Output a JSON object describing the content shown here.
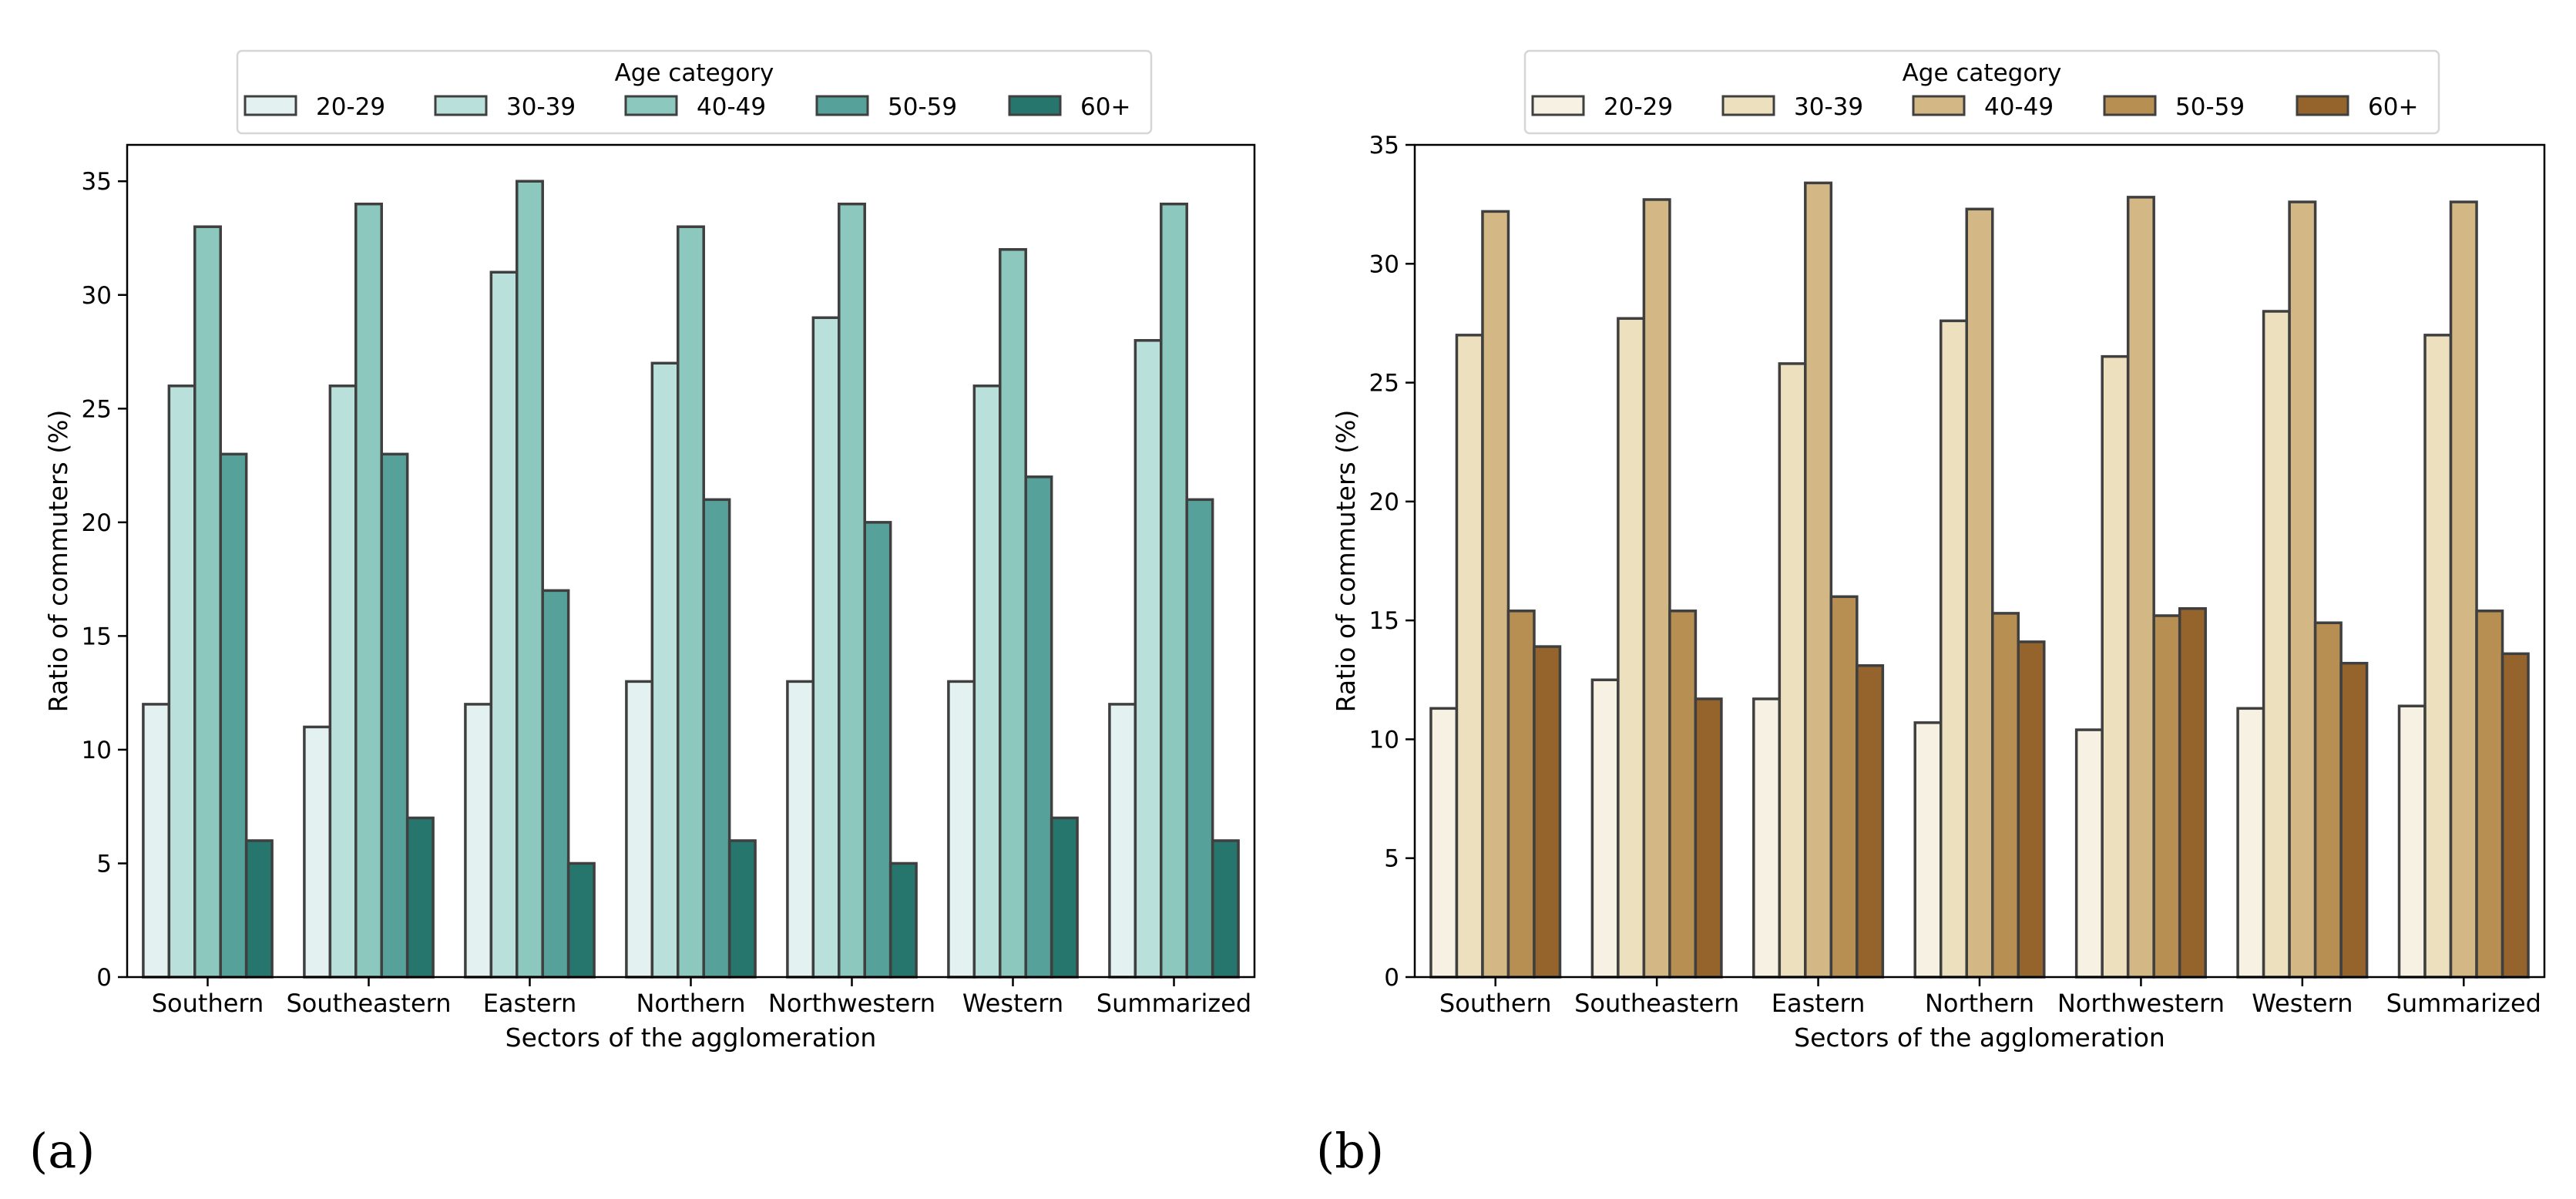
{
  "chart_data": [
    {
      "type": "bar",
      "panel_label": "(a)",
      "title": "",
      "xlabel": "Sectors of the agglomeration",
      "ylabel": "Ratio of commuters (%)",
      "ylim": [
        0,
        36.6
      ],
      "yticks": [
        0,
        5,
        10,
        15,
        20,
        25,
        30,
        35
      ],
      "grid": false,
      "legend": {
        "title": "Age category",
        "position": "top-center"
      },
      "categories": [
        "Southern",
        "Southeastern",
        "Eastern",
        "Northern",
        "Northwestern",
        "Western",
        "Summarized"
      ],
      "series": [
        {
          "name": "20-29",
          "color": "#e3f2f0",
          "values": [
            12,
            11,
            12,
            13,
            13,
            13,
            12
          ]
        },
        {
          "name": "30-39",
          "color": "#b9e0da",
          "values": [
            26,
            26,
            31,
            27,
            29,
            26,
            28
          ]
        },
        {
          "name": "40-49",
          "color": "#8dc8bf",
          "values": [
            33,
            34,
            35,
            33,
            34,
            32,
            34
          ]
        },
        {
          "name": "50-59",
          "color": "#56a19a",
          "values": [
            23,
            23,
            17,
            21,
            20,
            22,
            21
          ]
        },
        {
          "name": "60+",
          "color": "#27766e",
          "values": [
            6,
            7,
            5,
            6,
            5,
            7,
            6
          ]
        }
      ]
    },
    {
      "type": "bar",
      "panel_label": "(b)",
      "title": "",
      "xlabel": "Sectors of the agglomeration",
      "ylabel": "Ratio of commuters (%)",
      "ylim": [
        0,
        35
      ],
      "yticks": [
        0,
        5,
        10,
        15,
        20,
        25,
        30,
        35
      ],
      "grid": false,
      "legend": {
        "title": "Age category",
        "position": "top-center"
      },
      "categories": [
        "Southern",
        "Southeastern",
        "Eastern",
        "Northern",
        "Northwestern",
        "Western",
        "Summarized"
      ],
      "series": [
        {
          "name": "20-29",
          "color": "#f6f1e2",
          "values": [
            11.3,
            12.5,
            11.7,
            10.7,
            10.4,
            11.3,
            11.4
          ]
        },
        {
          "name": "30-39",
          "color": "#ece0bf",
          "values": [
            27.0,
            27.7,
            25.8,
            27.6,
            26.1,
            28.0,
            27.0
          ]
        },
        {
          "name": "40-49",
          "color": "#d3b885",
          "values": [
            32.2,
            32.7,
            33.4,
            32.3,
            32.8,
            32.6,
            32.6
          ]
        },
        {
          "name": "50-59",
          "color": "#b88f52",
          "values": [
            15.4,
            15.4,
            16.0,
            15.3,
            15.2,
            14.9,
            15.4
          ]
        },
        {
          "name": "60+",
          "color": "#94642c",
          "values": [
            13.9,
            11.7,
            13.1,
            14.1,
            15.5,
            13.2,
            13.6
          ]
        }
      ]
    }
  ]
}
